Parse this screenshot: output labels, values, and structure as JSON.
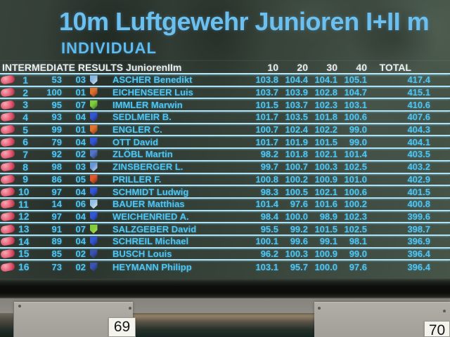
{
  "display": {
    "title": "10m Luftgewehr Junioren I+II m",
    "subtitle": "INDIVIDUAL",
    "table": {
      "header_left": "INTERMEDIATE RESULTS JuniorenIIm",
      "columns": [
        "10",
        "20",
        "30",
        "40",
        "TOTAL"
      ],
      "rows": [
        {
          "rank": "1",
          "bib": "53",
          "relay": "03",
          "crest": {
            "c1": "#8cbcea",
            "c2": "#e8f2fa"
          },
          "name": "ASCHER Benedikt",
          "scores": [
            "103.8",
            "104.4",
            "104.1",
            "105.1"
          ],
          "total": "417.4"
        },
        {
          "rank": "2",
          "bib": "100",
          "relay": "01",
          "crest": {
            "c1": "#e8762f",
            "c2": "#8a2f1a"
          },
          "name": "EICHENSEER Luis",
          "scores": [
            "103.7",
            "103.9",
            "102.8",
            "104.7"
          ],
          "total": "415.1"
        },
        {
          "rank": "3",
          "bib": "95",
          "relay": "07",
          "crest": {
            "c1": "#84d43e",
            "c2": "#2f6a1f"
          },
          "name": "IMMLER Marwin",
          "scores": [
            "101.5",
            "103.7",
            "102.3",
            "103.1"
          ],
          "total": "410.6"
        },
        {
          "rank": "4",
          "bib": "93",
          "relay": "04",
          "crest": {
            "c1": "#3558dc",
            "c2": "#14297a"
          },
          "name": "SEDLMEIR B.",
          "scores": [
            "101.7",
            "103.5",
            "101.8",
            "100.6"
          ],
          "total": "407.6"
        },
        {
          "rank": "5",
          "bib": "99",
          "relay": "01",
          "crest": {
            "c1": "#e8762f",
            "c2": "#8a2f1a"
          },
          "name": "ENGLER C.",
          "scores": [
            "100.7",
            "102.4",
            "102.2",
            "99.0"
          ],
          "total": "404.3"
        },
        {
          "rank": "6",
          "bib": "79",
          "relay": "04",
          "crest": {
            "c1": "#3558dc",
            "c2": "#14297a"
          },
          "name": "OTT David",
          "scores": [
            "101.7",
            "101.9",
            "101.5",
            "99.0"
          ],
          "total": "404.1"
        },
        {
          "rank": "7",
          "bib": "92",
          "relay": "02",
          "crest": {
            "c1": "#5578d0",
            "c2": "#22336e"
          },
          "name": "ZLÖBL Martin",
          "scores": [
            "98.2",
            "101.8",
            "102.1",
            "101.4"
          ],
          "total": "403.5"
        },
        {
          "rank": "8",
          "bib": "98",
          "relay": "03",
          "crest": {
            "c1": "#6a9ade",
            "c2": "#d8e8f8"
          },
          "name": "ZINSBERGER L.",
          "scores": [
            "99.7",
            "100.7",
            "100.3",
            "102.5"
          ],
          "total": "403.2"
        },
        {
          "rank": "9",
          "bib": "86",
          "relay": "05",
          "crest": {
            "c1": "#e85a2c",
            "c2": "#7a1f14"
          },
          "name": "PRILLER F.",
          "scores": [
            "100.8",
            "100.2",
            "100.9",
            "101.0"
          ],
          "total": "402.9"
        },
        {
          "rank": "10",
          "bib": "97",
          "relay": "04",
          "crest": {
            "c1": "#3558dc",
            "c2": "#14297a"
          },
          "name": "SCHMIDT Ludwig",
          "scores": [
            "98.3",
            "100.5",
            "102.1",
            "100.6"
          ],
          "total": "401.5"
        },
        {
          "rank": "11",
          "bib": "14",
          "relay": "06",
          "crest": {
            "c1": "#9cc8ec",
            "c2": "#e8f2fa"
          },
          "name": "BAUER Matthias",
          "scores": [
            "101.4",
            "97.6",
            "101.6",
            "100.2"
          ],
          "total": "400.8"
        },
        {
          "rank": "12",
          "bib": "97",
          "relay": "04",
          "crest": {
            "c1": "#3558dc",
            "c2": "#14297a"
          },
          "name": "WEICHENRIED A.",
          "scores": [
            "98.4",
            "100.0",
            "98.9",
            "102.3"
          ],
          "total": "399.6"
        },
        {
          "rank": "13",
          "bib": "91",
          "relay": "07",
          "crest": {
            "c1": "#84d43e",
            "c2": "#c8e060"
          },
          "name": "SALZGEBER David",
          "scores": [
            "95.5",
            "99.2",
            "101.5",
            "102.5"
          ],
          "total": "398.7"
        },
        {
          "rank": "14",
          "bib": "89",
          "relay": "04",
          "crest": {
            "c1": "#3558dc",
            "c2": "#14297a"
          },
          "name": "SCHREIL Michael",
          "scores": [
            "100.1",
            "99.6",
            "99.1",
            "98.1"
          ],
          "total": "396.9"
        },
        {
          "rank": "15",
          "bib": "85",
          "relay": "02",
          "crest": {
            "c1": "#3a55b0",
            "c2": "#1a2a66"
          },
          "name": "BUSCH Louis",
          "scores": [
            "96.2",
            "100.3",
            "100.9",
            "99.0"
          ],
          "total": "396.4"
        },
        {
          "rank": "16",
          "bib": "73",
          "relay": "02",
          "crest": {
            "c1": "#3a55b0",
            "c2": "#1a2a66"
          },
          "name": "HEYMANN Philipp",
          "scores": [
            "103.1",
            "95.7",
            "100.0",
            "97.6"
          ],
          "total": "396.4"
        }
      ]
    }
  },
  "wall": {
    "lane_tag_left": "69",
    "lane_tag_right": "70"
  },
  "colors": {
    "row_text": "#4fc6f3",
    "title_text": "#6cc0f0",
    "header_text": "#e8eff3",
    "separator_line": "#aee2f4",
    "rank_marker": "#e25970",
    "screen_background": "#37423a"
  }
}
